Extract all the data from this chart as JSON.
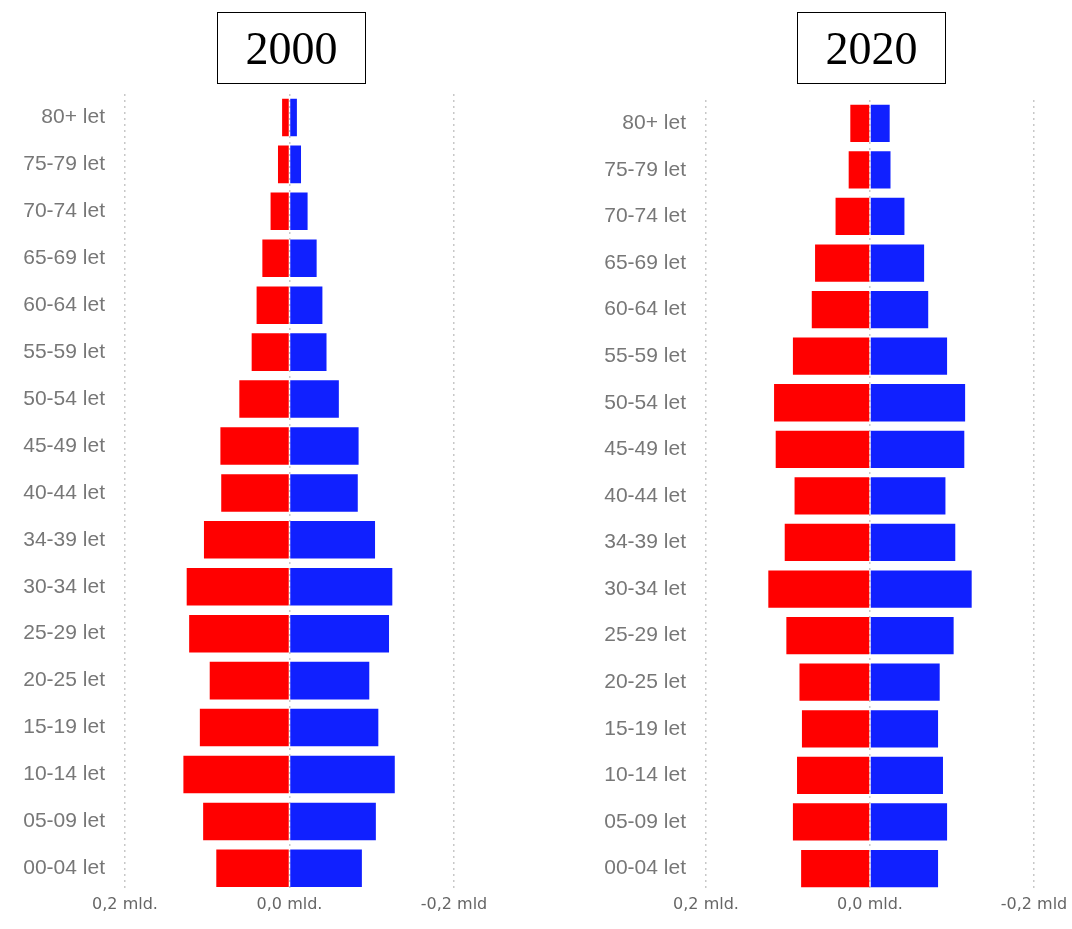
{
  "chart_data": [
    {
      "type": "bar",
      "title": "2000",
      "orientation": "horizontal",
      "stacked": true,
      "categories": [
        "80+ let",
        "75-79 let",
        "70-74 let",
        "65-69 let",
        "60-64 let",
        "55-59 let",
        "50-54 let",
        "45-49 let",
        "40-44 let",
        "34-39 let",
        "30-34 let",
        "25-29 let",
        "20-25 let",
        "15-19 let",
        "10-14 let",
        "05-09 let",
        "00-04 let"
      ],
      "series": [
        {
          "color": "#ff0000",
          "values": [
            0.009,
            0.014,
            0.023,
            0.033,
            0.04,
            0.046,
            0.061,
            0.084,
            0.083,
            0.104,
            0.125,
            0.122,
            0.097,
            0.109,
            0.129,
            0.105,
            0.089
          ]
        },
        {
          "color": "#1020ff",
          "values": [
            -0.009,
            -0.014,
            -0.022,
            -0.033,
            -0.04,
            -0.045,
            -0.06,
            -0.084,
            -0.083,
            -0.104,
            -0.125,
            -0.121,
            -0.097,
            -0.108,
            -0.128,
            -0.105,
            -0.088
          ]
        }
      ],
      "xlim": [
        0.2,
        -0.2
      ],
      "xticks": [
        {
          "value": 0.2,
          "label": "0,2 mld."
        },
        {
          "value": 0,
          "label": "0,0 mld."
        },
        {
          "value": -0.2,
          "label": "-0,2 mld"
        }
      ],
      "grid": "x",
      "legend": false
    },
    {
      "type": "bar",
      "title": "2020",
      "orientation": "horizontal",
      "stacked": true,
      "categories": [
        "80+ let",
        "75-79 let",
        "70-74 let",
        "65-69 let",
        "60-64 let",
        "55-59 let",
        "50-54 let",
        "45-49 let",
        "40-44 let",
        "34-39 let",
        "30-34 let",
        "25-29 let",
        "20-25 let",
        "15-19 let",
        "10-14 let",
        "05-09 let",
        "00-04 let"
      ],
      "series": [
        {
          "color": "#ff0000",
          "values": [
            0.024,
            0.026,
            0.042,
            0.067,
            0.071,
            0.094,
            0.117,
            0.115,
            0.092,
            0.104,
            0.124,
            0.102,
            0.086,
            0.083,
            0.089,
            0.094,
            0.084
          ]
        },
        {
          "color": "#1020ff",
          "values": [
            -0.024,
            -0.025,
            -0.042,
            -0.066,
            -0.071,
            -0.094,
            -0.116,
            -0.115,
            -0.092,
            -0.104,
            -0.124,
            -0.102,
            -0.085,
            -0.083,
            -0.089,
            -0.094,
            -0.083
          ]
        }
      ],
      "xlim": [
        0.2,
        -0.2
      ],
      "xticks": [
        {
          "value": 0.2,
          "label": "0,2 mld."
        },
        {
          "value": 0,
          "label": "0,0 mld."
        },
        {
          "value": -0.2,
          "label": "-0,2 mld"
        }
      ],
      "grid": "x",
      "legend": false
    }
  ]
}
